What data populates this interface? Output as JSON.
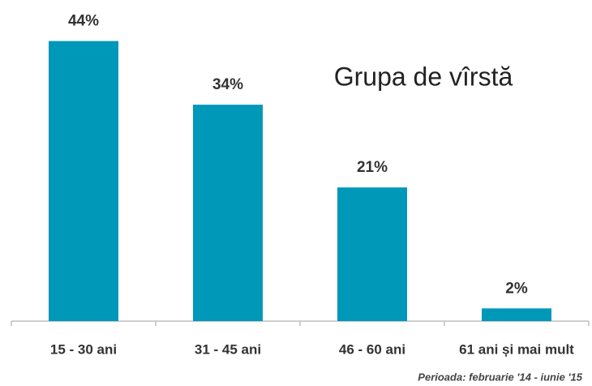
{
  "chart_data": {
    "type": "bar",
    "title": "Grupa de vîrstă",
    "categories": [
      "15 - 30 ani",
      "31 - 45 ani",
      "46 - 60 ani",
      "61 ani și mai mult"
    ],
    "values": [
      44,
      34,
      21,
      2
    ],
    "value_labels": [
      "44%",
      "34%",
      "21%",
      "2%"
    ],
    "color": "#0098b9",
    "note": "Perioada: februarie '14 - iunie '15"
  }
}
